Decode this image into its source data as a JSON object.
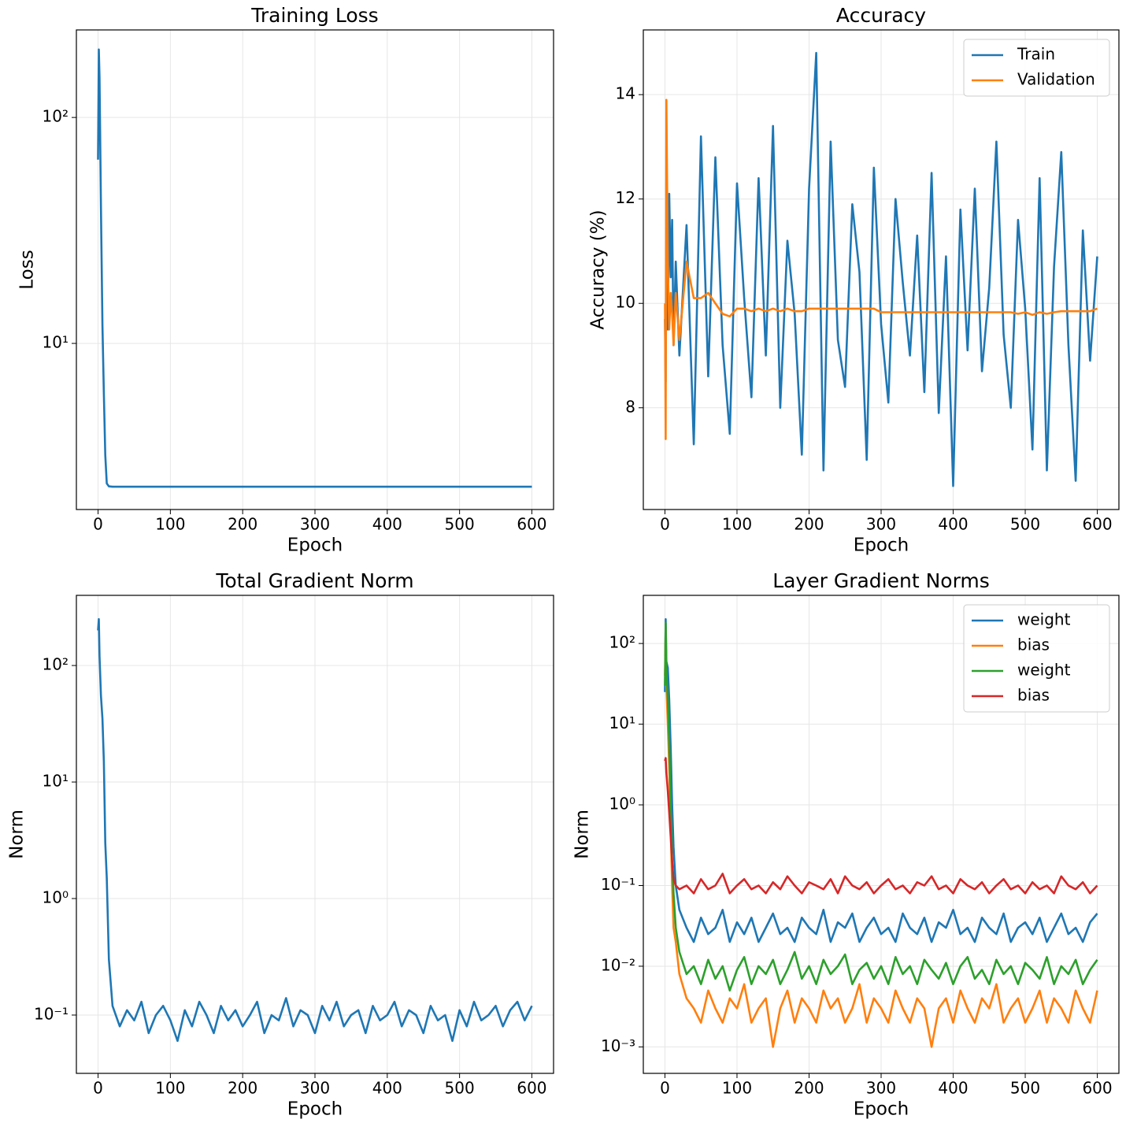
{
  "chart_data": [
    {
      "type": "line",
      "title": "Training Loss",
      "xlabel": "Epoch",
      "ylabel": "Loss",
      "yscale": "log",
      "grid": true,
      "xlim": [
        -30,
        630
      ],
      "ylim": [
        1.84,
        244
      ],
      "xticks": [
        0,
        100,
        200,
        300,
        400,
        500,
        600
      ],
      "yticks": [
        {
          "value": 10,
          "label": "10¹"
        },
        {
          "value": 100,
          "label": "10²"
        }
      ],
      "x": [
        0,
        1,
        2,
        4,
        6,
        8,
        10,
        12,
        15,
        20,
        30,
        40,
        50,
        60,
        70,
        80,
        90,
        100,
        110,
        120,
        130,
        140,
        150,
        160,
        170,
        180,
        190,
        200,
        210,
        220,
        230,
        240,
        250,
        260,
        270,
        280,
        290,
        300,
        310,
        320,
        330,
        340,
        350,
        360,
        370,
        380,
        390,
        400,
        410,
        420,
        430,
        440,
        450,
        460,
        470,
        480,
        490,
        500,
        510,
        520,
        530,
        540,
        550,
        560,
        570,
        580,
        590,
        600
      ],
      "series": [
        {
          "color": "#1f77b4",
          "values": [
            65,
            200,
            150,
            40,
            12,
            6,
            3.2,
            2.4,
            2.33,
            2.32,
            2.32,
            2.32,
            2.32,
            2.32,
            2.32,
            2.32,
            2.32,
            2.32,
            2.32,
            2.32,
            2.32,
            2.32,
            2.32,
            2.32,
            2.32,
            2.32,
            2.32,
            2.32,
            2.32,
            2.32,
            2.32,
            2.32,
            2.32,
            2.32,
            2.32,
            2.32,
            2.32,
            2.32,
            2.32,
            2.32,
            2.32,
            2.32,
            2.32,
            2.32,
            2.32,
            2.32,
            2.32,
            2.32,
            2.32,
            2.32,
            2.32,
            2.32,
            2.32,
            2.32,
            2.32,
            2.32,
            2.32,
            2.32,
            2.32,
            2.32,
            2.32,
            2.32,
            2.32,
            2.32,
            2.32,
            2.32,
            2.32,
            2.32
          ]
        }
      ]
    },
    {
      "type": "line",
      "title": "Accuracy",
      "xlabel": "Epoch",
      "ylabel": "Accuracy (%)",
      "yscale": "linear",
      "grid": true,
      "legend": "upper right",
      "xlim": [
        -30,
        630
      ],
      "ylim": [
        6.05,
        15.24
      ],
      "xticks": [
        0,
        100,
        200,
        300,
        400,
        500,
        600
      ],
      "yticks": [
        8,
        10,
        12,
        14
      ],
      "x": [
        0,
        1,
        2,
        4,
        6,
        8,
        10,
        12,
        15,
        20,
        30,
        40,
        50,
        60,
        70,
        80,
        90,
        100,
        110,
        120,
        130,
        140,
        150,
        160,
        170,
        180,
        190,
        200,
        210,
        220,
        230,
        240,
        250,
        260,
        270,
        280,
        290,
        300,
        310,
        320,
        330,
        340,
        350,
        360,
        370,
        380,
        390,
        400,
        410,
        420,
        430,
        440,
        450,
        460,
        470,
        480,
        490,
        500,
        510,
        520,
        530,
        540,
        550,
        560,
        570,
        580,
        590,
        600
      ],
      "series": [
        {
          "name": "Train",
          "color": "#1f77b4",
          "values": [
            9.7,
            8.5,
            11.0,
            9.5,
            12.1,
            10.5,
            11.6,
            9.2,
            10.8,
            9.0,
            11.5,
            7.3,
            13.2,
            8.6,
            12.8,
            9.2,
            7.5,
            12.3,
            10.1,
            8.2,
            12.4,
            9.0,
            13.4,
            8.0,
            11.2,
            9.8,
            7.1,
            12.2,
            14.8,
            6.8,
            13.1,
            9.3,
            8.4,
            11.9,
            10.6,
            7.0,
            12.6,
            9.6,
            8.1,
            12.0,
            10.4,
            9.0,
            11.3,
            8.3,
            12.5,
            7.9,
            10.9,
            6.5,
            11.8,
            9.1,
            12.2,
            8.7,
            10.3,
            13.1,
            9.4,
            8.0,
            11.6,
            9.9,
            7.2,
            12.4,
            6.8,
            10.7,
            12.9,
            9.2,
            6.6,
            11.4,
            8.9,
            10.9
          ]
        },
        {
          "name": "Validation",
          "color": "#ff7f0e",
          "values": [
            10.0,
            7.4,
            13.9,
            10.8,
            9.5,
            10.2,
            9.8,
            9.2,
            10.2,
            9.3,
            10.8,
            10.1,
            10.1,
            10.2,
            10.0,
            9.8,
            9.75,
            9.9,
            9.9,
            9.85,
            9.9,
            9.85,
            9.9,
            9.85,
            9.9,
            9.85,
            9.85,
            9.9,
            9.9,
            9.9,
            9.9,
            9.9,
            9.9,
            9.9,
            9.9,
            9.9,
            9.9,
            9.83,
            9.83,
            9.83,
            9.83,
            9.83,
            9.83,
            9.83,
            9.83,
            9.83,
            9.83,
            9.83,
            9.83,
            9.83,
            9.83,
            9.83,
            9.83,
            9.83,
            9.83,
            9.83,
            9.8,
            9.83,
            9.78,
            9.83,
            9.8,
            9.83,
            9.85,
            9.85,
            9.85,
            9.85,
            9.85,
            9.9
          ]
        }
      ]
    },
    {
      "type": "line",
      "title": "Total Gradient Norm",
      "xlabel": "Epoch",
      "ylabel": "Norm",
      "yscale": "log",
      "grid": true,
      "xlim": [
        -30,
        630
      ],
      "ylim": [
        0.0316,
        400
      ],
      "xticks": [
        0,
        100,
        200,
        300,
        400,
        500,
        600
      ],
      "yticks": [
        {
          "value": 0.1,
          "label": "10⁻¹"
        },
        {
          "value": 1,
          "label": "10⁰"
        },
        {
          "value": 10,
          "label": "10¹"
        },
        {
          "value": 100,
          "label": "10²"
        }
      ],
      "x": [
        0,
        1,
        2,
        4,
        6,
        8,
        10,
        12,
        15,
        20,
        30,
        40,
        50,
        60,
        70,
        80,
        90,
        100,
        110,
        120,
        130,
        140,
        150,
        160,
        170,
        180,
        190,
        200,
        210,
        220,
        230,
        240,
        250,
        260,
        270,
        280,
        290,
        300,
        310,
        320,
        330,
        340,
        350,
        360,
        370,
        380,
        390,
        400,
        410,
        420,
        430,
        440,
        450,
        460,
        470,
        480,
        490,
        500,
        510,
        520,
        530,
        540,
        550,
        560,
        570,
        580,
        590,
        600
      ],
      "series": [
        {
          "color": "#1f77b4",
          "values": [
            200,
            250,
            120,
            55,
            35,
            15,
            3,
            1.5,
            0.3,
            0.12,
            0.08,
            0.11,
            0.09,
            0.13,
            0.07,
            0.1,
            0.12,
            0.09,
            0.06,
            0.11,
            0.08,
            0.13,
            0.1,
            0.07,
            0.12,
            0.09,
            0.11,
            0.08,
            0.1,
            0.13,
            0.07,
            0.1,
            0.09,
            0.14,
            0.08,
            0.11,
            0.1,
            0.07,
            0.12,
            0.09,
            0.13,
            0.08,
            0.1,
            0.11,
            0.07,
            0.12,
            0.09,
            0.1,
            0.13,
            0.08,
            0.11,
            0.1,
            0.07,
            0.12,
            0.09,
            0.1,
            0.06,
            0.11,
            0.08,
            0.13,
            0.09,
            0.1,
            0.12,
            0.08,
            0.11,
            0.13,
            0.09,
            0.12
          ]
        }
      ]
    },
    {
      "type": "line",
      "title": "Layer Gradient Norms",
      "xlabel": "Epoch",
      "ylabel": "Norm",
      "yscale": "log",
      "grid": true,
      "legend": "upper right",
      "xlim": [
        -30,
        630
      ],
      "ylim": [
        0.00047,
        395
      ],
      "xticks": [
        0,
        100,
        200,
        300,
        400,
        500,
        600
      ],
      "yticks": [
        {
          "value": 0.001,
          "label": "10⁻³"
        },
        {
          "value": 0.01,
          "label": "10⁻²"
        },
        {
          "value": 0.1,
          "label": "10⁻¹"
        },
        {
          "value": 1,
          "label": "10⁰"
        },
        {
          "value": 10,
          "label": "10¹"
        },
        {
          "value": 100,
          "label": "10²"
        }
      ],
      "x": [
        0,
        1,
        2,
        4,
        6,
        8,
        10,
        12,
        15,
        20,
        30,
        40,
        50,
        60,
        70,
        80,
        90,
        100,
        110,
        120,
        130,
        140,
        150,
        160,
        170,
        180,
        190,
        200,
        210,
        220,
        230,
        240,
        250,
        260,
        270,
        280,
        290,
        300,
        310,
        320,
        330,
        340,
        350,
        360,
        370,
        380,
        390,
        400,
        410,
        420,
        430,
        440,
        450,
        460,
        470,
        480,
        490,
        500,
        510,
        520,
        530,
        540,
        550,
        560,
        570,
        580,
        590,
        600
      ],
      "series": [
        {
          "name": "weight",
          "color": "#1f77b4",
          "values": [
            25,
            200,
            60,
            50,
            20,
            5,
            1,
            0.3,
            0.1,
            0.05,
            0.03,
            0.02,
            0.04,
            0.025,
            0.03,
            0.05,
            0.02,
            0.035,
            0.025,
            0.04,
            0.02,
            0.03,
            0.045,
            0.025,
            0.03,
            0.02,
            0.04,
            0.03,
            0.025,
            0.05,
            0.02,
            0.035,
            0.03,
            0.045,
            0.02,
            0.03,
            0.04,
            0.025,
            0.03,
            0.02,
            0.045,
            0.03,
            0.025,
            0.04,
            0.02,
            0.035,
            0.03,
            0.05,
            0.025,
            0.03,
            0.02,
            0.04,
            0.03,
            0.025,
            0.045,
            0.02,
            0.03,
            0.035,
            0.025,
            0.04,
            0.02,
            0.03,
            0.045,
            0.025,
            0.03,
            0.02,
            0.035,
            0.045
          ]
        },
        {
          "name": "bias",
          "color": "#ff7f0e",
          "values": [
            40,
            150,
            30,
            10,
            3,
            0.5,
            0.1,
            0.03,
            0.02,
            0.008,
            0.004,
            0.003,
            0.002,
            0.005,
            0.003,
            0.002,
            0.004,
            0.003,
            0.006,
            0.002,
            0.003,
            0.004,
            0.001,
            0.003,
            0.005,
            0.002,
            0.004,
            0.003,
            0.002,
            0.005,
            0.003,
            0.004,
            0.002,
            0.003,
            0.006,
            0.002,
            0.004,
            0.003,
            0.002,
            0.005,
            0.003,
            0.002,
            0.004,
            0.003,
            0.001,
            0.003,
            0.004,
            0.002,
            0.005,
            0.003,
            0.002,
            0.004,
            0.003,
            0.006,
            0.002,
            0.003,
            0.004,
            0.002,
            0.003,
            0.005,
            0.002,
            0.004,
            0.003,
            0.002,
            0.005,
            0.003,
            0.002,
            0.005
          ]
        },
        {
          "name": "weight",
          "color": "#2ca02c",
          "values": [
            30,
            180,
            50,
            20,
            6,
            1,
            0.2,
            0.08,
            0.03,
            0.015,
            0.008,
            0.01,
            0.006,
            0.012,
            0.007,
            0.01,
            0.005,
            0.009,
            0.013,
            0.006,
            0.01,
            0.008,
            0.012,
            0.006,
            0.009,
            0.015,
            0.007,
            0.01,
            0.006,
            0.012,
            0.008,
            0.01,
            0.014,
            0.006,
            0.009,
            0.011,
            0.007,
            0.01,
            0.006,
            0.013,
            0.008,
            0.01,
            0.006,
            0.012,
            0.009,
            0.007,
            0.011,
            0.006,
            0.01,
            0.013,
            0.007,
            0.009,
            0.006,
            0.012,
            0.008,
            0.01,
            0.006,
            0.011,
            0.009,
            0.007,
            0.013,
            0.006,
            0.01,
            0.008,
            0.012,
            0.006,
            0.009,
            0.012
          ]
        },
        {
          "name": "bias",
          "color": "#d62728",
          "values": [
            3.5,
            3.8,
            2.5,
            1.5,
            0.8,
            0.4,
            0.2,
            0.12,
            0.1,
            0.09,
            0.1,
            0.08,
            0.12,
            0.09,
            0.1,
            0.14,
            0.08,
            0.1,
            0.12,
            0.09,
            0.1,
            0.08,
            0.11,
            0.09,
            0.13,
            0.1,
            0.08,
            0.11,
            0.1,
            0.09,
            0.12,
            0.08,
            0.13,
            0.1,
            0.09,
            0.11,
            0.08,
            0.1,
            0.12,
            0.09,
            0.1,
            0.08,
            0.11,
            0.1,
            0.13,
            0.09,
            0.1,
            0.08,
            0.12,
            0.1,
            0.09,
            0.11,
            0.08,
            0.1,
            0.12,
            0.09,
            0.1,
            0.08,
            0.11,
            0.09,
            0.1,
            0.08,
            0.13,
            0.1,
            0.09,
            0.11,
            0.08,
            0.1
          ]
        }
      ]
    }
  ]
}
